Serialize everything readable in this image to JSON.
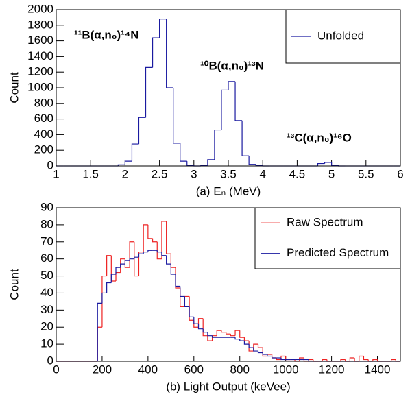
{
  "chart_data": [
    {
      "type": "histogram",
      "xlabel": "(a) Eₙ (MeV)",
      "ylabel": "Count",
      "bins": [
        1.0,
        1.1,
        1.2,
        1.3,
        1.4,
        1.5,
        1.6,
        1.7,
        1.8,
        1.9,
        2.0,
        2.1,
        2.2,
        2.3,
        2.4,
        2.5,
        2.6,
        2.7,
        2.8,
        2.9,
        3.0,
        3.1,
        3.2,
        3.3,
        3.4,
        3.5,
        3.6,
        3.7,
        3.8,
        3.9,
        4.0,
        4.1,
        4.2,
        4.3,
        4.4,
        4.5,
        4.6,
        4.7,
        4.8,
        4.9,
        5.0,
        5.1,
        5.2,
        5.3,
        5.4,
        5.5,
        5.6,
        5.7,
        5.8,
        5.9,
        6.0
      ],
      "series": [
        {
          "name": "Unfolded",
          "color": "#1a1aa0",
          "values": [
            0,
            0,
            0,
            0,
            0,
            0,
            0,
            0,
            0,
            15,
            60,
            280,
            620,
            1260,
            1640,
            1880,
            1000,
            290,
            60,
            10,
            0,
            10,
            80,
            460,
            970,
            1080,
            580,
            130,
            20,
            5,
            0,
            0,
            0,
            0,
            0,
            0,
            0,
            0,
            30,
            45,
            10,
            0,
            0,
            0,
            0,
            0,
            0,
            0,
            0,
            0
          ]
        }
      ],
      "xlim": [
        1,
        6
      ],
      "ylim": [
        0,
        2000
      ],
      "xticks": [
        1,
        1.5,
        2,
        2.5,
        3,
        3.5,
        4,
        4.5,
        5,
        5.5,
        6
      ],
      "yticks": [
        0,
        200,
        400,
        600,
        800,
        1000,
        1200,
        1400,
        1600,
        1800,
        2000
      ],
      "annotations": [
        "¹¹B(α,n₀)¹⁴N",
        "¹⁰B(α,n₀)¹³N",
        "¹³C(α,n₀)¹⁶O"
      ],
      "annotation_color": "#ee1111",
      "legend": "upper right"
    },
    {
      "type": "histogram",
      "xlabel": "(b) Light Output (keVee)",
      "ylabel": "Count",
      "bins": [
        0,
        20,
        40,
        60,
        80,
        100,
        120,
        140,
        160,
        180,
        200,
        220,
        240,
        260,
        280,
        300,
        320,
        340,
        360,
        380,
        400,
        420,
        440,
        460,
        480,
        500,
        520,
        540,
        560,
        580,
        600,
        620,
        640,
        660,
        680,
        700,
        720,
        740,
        760,
        780,
        800,
        820,
        840,
        860,
        880,
        900,
        920,
        940,
        960,
        980,
        1000,
        1020,
        1040,
        1060,
        1080,
        1100,
        1120,
        1140,
        1160,
        1180,
        1200,
        1220,
        1240,
        1260,
        1280,
        1300,
        1320,
        1340,
        1360,
        1380,
        1400,
        1420,
        1440,
        1460,
        1480,
        1500
      ],
      "series": [
        {
          "name": "Raw Spectrum",
          "color": "#ee2222",
          "values": [
            0,
            0,
            0,
            0,
            0,
            0,
            0,
            0,
            0,
            20,
            50,
            62,
            47,
            52,
            60,
            55,
            70,
            50,
            64,
            80,
            72,
            70,
            60,
            82,
            63,
            55,
            43,
            32,
            38,
            24,
            20,
            25,
            15,
            12,
            15,
            18,
            17,
            16,
            15,
            18,
            14,
            12,
            6,
            10,
            8,
            3,
            4,
            2,
            1,
            3,
            1,
            1,
            0,
            2,
            0,
            1,
            0,
            0,
            1,
            0,
            0,
            0,
            1,
            0,
            2,
            0,
            3,
            1,
            0,
            1,
            0,
            0,
            0,
            1,
            0
          ]
        },
        {
          "name": "Predicted Spectrum",
          "color": "#1a1aa0",
          "values": [
            0,
            0,
            0,
            0,
            0,
            0,
            0,
            0,
            0,
            34,
            40,
            46,
            51,
            55,
            57,
            59,
            60,
            61,
            63,
            64,
            65,
            65,
            64,
            62,
            57,
            51,
            44,
            38,
            32,
            26,
            22,
            19,
            17,
            15,
            14,
            14,
            14,
            14,
            14,
            13,
            12,
            10,
            8,
            6,
            5,
            4,
            3,
            2,
            2,
            1,
            1,
            1,
            1,
            1,
            1,
            0,
            0,
            0,
            0,
            0,
            0,
            0,
            0,
            0,
            0,
            0,
            0,
            0,
            0,
            0,
            0,
            0,
            0,
            0,
            0
          ]
        }
      ],
      "xlim": [
        0,
        1500
      ],
      "ylim": [
        0,
        90
      ],
      "xticks": [
        0,
        200,
        400,
        600,
        800,
        1000,
        1200,
        1400
      ],
      "yticks": [
        0,
        10,
        20,
        30,
        40,
        50,
        60,
        70,
        80,
        90
      ],
      "legend": "upper right"
    }
  ]
}
